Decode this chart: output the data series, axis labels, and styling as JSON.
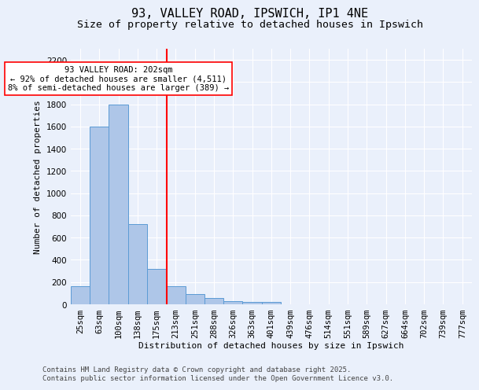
{
  "title_line1": "93, VALLEY ROAD, IPSWICH, IP1 4NE",
  "title_line2": "Size of property relative to detached houses in Ipswich",
  "xlabel": "Distribution of detached houses by size in Ipswich",
  "ylabel": "Number of detached properties",
  "categories": [
    "25sqm",
    "63sqm",
    "100sqm",
    "138sqm",
    "175sqm",
    "213sqm",
    "251sqm",
    "288sqm",
    "326sqm",
    "363sqm",
    "401sqm",
    "439sqm",
    "476sqm",
    "514sqm",
    "551sqm",
    "589sqm",
    "627sqm",
    "664sqm",
    "702sqm",
    "739sqm",
    "777sqm"
  ],
  "values": [
    160,
    1600,
    1800,
    725,
    320,
    160,
    90,
    55,
    30,
    20,
    20,
    0,
    0,
    0,
    0,
    0,
    0,
    0,
    0,
    0,
    0
  ],
  "bar_color": "#aec6e8",
  "bar_edge_color": "#5b9bd5",
  "vline_x": 4.52,
  "vline_color": "red",
  "annotation_text": "93 VALLEY ROAD: 202sqm\n← 92% of detached houses are smaller (4,511)\n8% of semi-detached houses are larger (389) →",
  "annotation_box_color": "white",
  "annotation_box_edge": "red",
  "ylim": [
    0,
    2300
  ],
  "yticks": [
    0,
    200,
    400,
    600,
    800,
    1000,
    1200,
    1400,
    1600,
    1800,
    2000,
    2200
  ],
  "bg_color": "#eaf0fb",
  "grid_color": "#ffffff",
  "footer_line1": "Contains HM Land Registry data © Crown copyright and database right 2025.",
  "footer_line2": "Contains public sector information licensed under the Open Government Licence v3.0.",
  "title_fontsize": 11,
  "subtitle_fontsize": 9.5,
  "axis_label_fontsize": 8,
  "tick_fontsize": 7.5,
  "footer_fontsize": 6.5,
  "annot_fontsize": 7.5
}
